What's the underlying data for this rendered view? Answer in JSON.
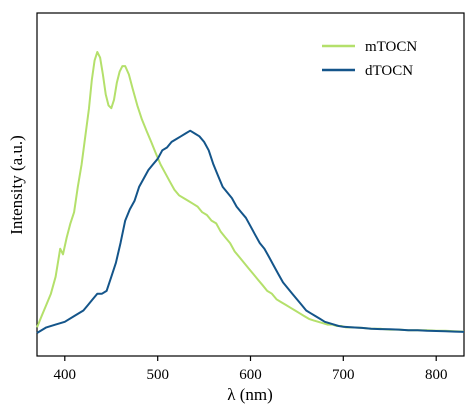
{
  "chart_data": {
    "type": "line",
    "title": "",
    "xlabel": "λ (nm)",
    "ylabel": "Intensity (a.u.)",
    "xlim": [
      370,
      830
    ],
    "ylim": [
      0,
      1
    ],
    "x_ticks": [
      400,
      500,
      600,
      700,
      800
    ],
    "y_ticks_shown": false,
    "grid": false,
    "legend_position": "top-right",
    "series": [
      {
        "name": "mTOCN",
        "color": "#b4e06b",
        "points": [
          [
            370,
            0.02
          ],
          [
            375,
            0.06
          ],
          [
            380,
            0.1
          ],
          [
            385,
            0.14
          ],
          [
            390,
            0.2
          ],
          [
            395,
            0.3
          ],
          [
            398,
            0.28
          ],
          [
            402,
            0.34
          ],
          [
            406,
            0.39
          ],
          [
            410,
            0.43
          ],
          [
            414,
            0.52
          ],
          [
            418,
            0.6
          ],
          [
            422,
            0.7
          ],
          [
            426,
            0.8
          ],
          [
            429,
            0.9
          ],
          [
            432,
            0.97
          ],
          [
            435,
            1.0
          ],
          [
            438,
            0.98
          ],
          [
            441,
            0.92
          ],
          [
            444,
            0.85
          ],
          [
            447,
            0.81
          ],
          [
            450,
            0.8
          ],
          [
            453,
            0.83
          ],
          [
            456,
            0.89
          ],
          [
            459,
            0.93
          ],
          [
            462,
            0.95
          ],
          [
            465,
            0.95
          ],
          [
            469,
            0.92
          ],
          [
            473,
            0.87
          ],
          [
            478,
            0.81
          ],
          [
            483,
            0.76
          ],
          [
            488,
            0.72
          ],
          [
            493,
            0.68
          ],
          [
            498,
            0.64
          ],
          [
            503,
            0.6
          ],
          [
            508,
            0.57
          ],
          [
            513,
            0.54
          ],
          [
            518,
            0.51
          ],
          [
            523,
            0.49
          ],
          [
            528,
            0.48
          ],
          [
            533,
            0.47
          ],
          [
            538,
            0.46
          ],
          [
            543,
            0.45
          ],
          [
            548,
            0.43
          ],
          [
            553,
            0.42
          ],
          [
            558,
            0.4
          ],
          [
            563,
            0.39
          ],
          [
            568,
            0.36
          ],
          [
            573,
            0.34
          ],
          [
            578,
            0.32
          ],
          [
            583,
            0.29
          ],
          [
            588,
            0.27
          ],
          [
            593,
            0.25
          ],
          [
            598,
            0.23
          ],
          [
            603,
            0.21
          ],
          [
            608,
            0.19
          ],
          [
            613,
            0.17
          ],
          [
            618,
            0.15
          ],
          [
            623,
            0.14
          ],
          [
            628,
            0.12
          ],
          [
            633,
            0.11
          ],
          [
            638,
            0.1
          ],
          [
            643,
            0.09
          ],
          [
            648,
            0.08
          ],
          [
            653,
            0.07
          ],
          [
            658,
            0.06
          ],
          [
            663,
            0.05
          ],
          [
            668,
            0.045
          ],
          [
            673,
            0.04
          ],
          [
            678,
            0.035
          ],
          [
            683,
            0.03
          ],
          [
            688,
            0.03
          ],
          [
            693,
            0.025
          ],
          [
            698,
            0.025
          ],
          [
            703,
            0.02
          ],
          [
            710,
            0.02
          ],
          [
            720,
            0.018
          ],
          [
            730,
            0.015
          ],
          [
            740,
            0.015
          ],
          [
            750,
            0.012
          ],
          [
            760,
            0.012
          ],
          [
            770,
            0.01
          ],
          [
            780,
            0.01
          ],
          [
            790,
            0.01
          ],
          [
            800,
            0.008
          ],
          [
            810,
            0.008
          ],
          [
            820,
            0.006
          ],
          [
            830,
            0.005
          ]
        ]
      },
      {
        "name": "dTOCN",
        "color": "#14558a",
        "points": [
          [
            370,
            0.0
          ],
          [
            380,
            0.02
          ],
          [
            390,
            0.03
          ],
          [
            400,
            0.04
          ],
          [
            410,
            0.06
          ],
          [
            420,
            0.08
          ],
          [
            425,
            0.1
          ],
          [
            430,
            0.12
          ],
          [
            435,
            0.14
          ],
          [
            440,
            0.14
          ],
          [
            445,
            0.15
          ],
          [
            450,
            0.2
          ],
          [
            455,
            0.25
          ],
          [
            460,
            0.32
          ],
          [
            465,
            0.4
          ],
          [
            470,
            0.44
          ],
          [
            475,
            0.47
          ],
          [
            480,
            0.52
          ],
          [
            485,
            0.55
          ],
          [
            490,
            0.58
          ],
          [
            495,
            0.6
          ],
          [
            500,
            0.62
          ],
          [
            505,
            0.65
          ],
          [
            510,
            0.66
          ],
          [
            515,
            0.68
          ],
          [
            520,
            0.69
          ],
          [
            525,
            0.7
          ],
          [
            530,
            0.71
          ],
          [
            535,
            0.72
          ],
          [
            540,
            0.71
          ],
          [
            545,
            0.7
          ],
          [
            550,
            0.68
          ],
          [
            555,
            0.65
          ],
          [
            560,
            0.6
          ],
          [
            565,
            0.56
          ],
          [
            570,
            0.52
          ],
          [
            575,
            0.5
          ],
          [
            580,
            0.48
          ],
          [
            585,
            0.45
          ],
          [
            590,
            0.43
          ],
          [
            595,
            0.41
          ],
          [
            600,
            0.38
          ],
          [
            605,
            0.35
          ],
          [
            610,
            0.32
          ],
          [
            615,
            0.3
          ],
          [
            620,
            0.27
          ],
          [
            625,
            0.24
          ],
          [
            630,
            0.21
          ],
          [
            635,
            0.18
          ],
          [
            640,
            0.16
          ],
          [
            645,
            0.14
          ],
          [
            650,
            0.12
          ],
          [
            655,
            0.1
          ],
          [
            660,
            0.08
          ],
          [
            665,
            0.07
          ],
          [
            670,
            0.06
          ],
          [
            675,
            0.05
          ],
          [
            680,
            0.04
          ],
          [
            685,
            0.035
          ],
          [
            690,
            0.03
          ],
          [
            695,
            0.025
          ],
          [
            700,
            0.022
          ],
          [
            710,
            0.02
          ],
          [
            720,
            0.018
          ],
          [
            730,
            0.015
          ],
          [
            740,
            0.014
          ],
          [
            750,
            0.013
          ],
          [
            760,
            0.012
          ],
          [
            770,
            0.01
          ],
          [
            780,
            0.01
          ],
          [
            790,
            0.008
          ],
          [
            800,
            0.007
          ],
          [
            810,
            0.006
          ],
          [
            820,
            0.005
          ],
          [
            830,
            0.004
          ]
        ]
      }
    ]
  }
}
